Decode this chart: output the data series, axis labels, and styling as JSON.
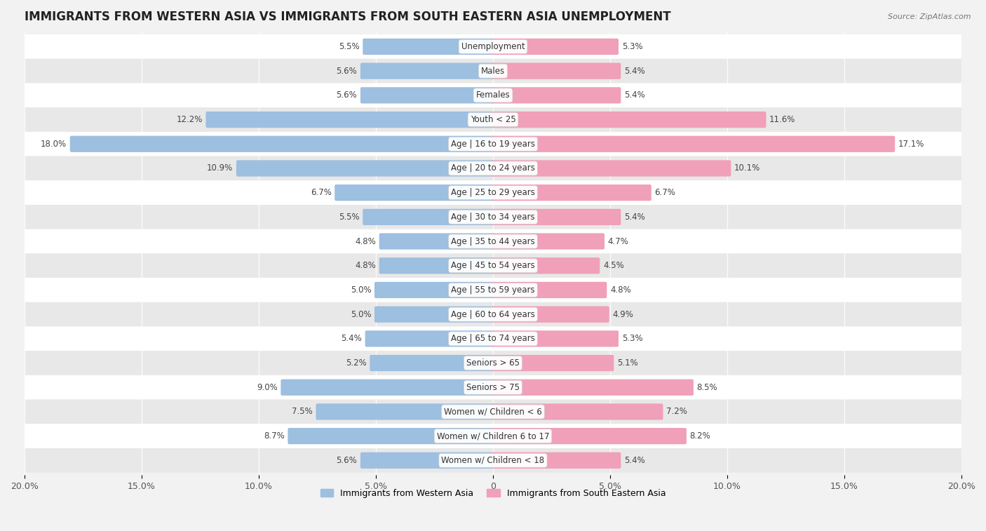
{
  "title": "IMMIGRANTS FROM WESTERN ASIA VS IMMIGRANTS FROM SOUTH EASTERN ASIA UNEMPLOYMENT",
  "source": "Source: ZipAtlas.com",
  "categories": [
    "Unemployment",
    "Males",
    "Females",
    "Youth < 25",
    "Age | 16 to 19 years",
    "Age | 20 to 24 years",
    "Age | 25 to 29 years",
    "Age | 30 to 34 years",
    "Age | 35 to 44 years",
    "Age | 45 to 54 years",
    "Age | 55 to 59 years",
    "Age | 60 to 64 years",
    "Age | 65 to 74 years",
    "Seniors > 65",
    "Seniors > 75",
    "Women w/ Children < 6",
    "Women w/ Children 6 to 17",
    "Women w/ Children < 18"
  ],
  "western_asia": [
    5.5,
    5.6,
    5.6,
    12.2,
    18.0,
    10.9,
    6.7,
    5.5,
    4.8,
    4.8,
    5.0,
    5.0,
    5.4,
    5.2,
    9.0,
    7.5,
    8.7,
    5.6
  ],
  "south_eastern_asia": [
    5.3,
    5.4,
    5.4,
    11.6,
    17.1,
    10.1,
    6.7,
    5.4,
    4.7,
    4.5,
    4.8,
    4.9,
    5.3,
    5.1,
    8.5,
    7.2,
    8.2,
    5.4
  ],
  "western_asia_color": "#9dbfe0",
  "south_eastern_asia_color": "#f0a0b8",
  "bar_height": 0.55,
  "xlim": 20.0,
  "background_color": "#f2f2f2",
  "row_even_color": "#ffffff",
  "row_odd_color": "#e8e8e8",
  "separator_color": "#d0d0d0",
  "title_fontsize": 12,
  "label_fontsize": 8.5,
  "value_fontsize": 8.5,
  "legend_label_western": "Immigrants from Western Asia",
  "legend_label_eastern": "Immigrants from South Eastern Asia",
  "tick_label_fontsize": 9
}
